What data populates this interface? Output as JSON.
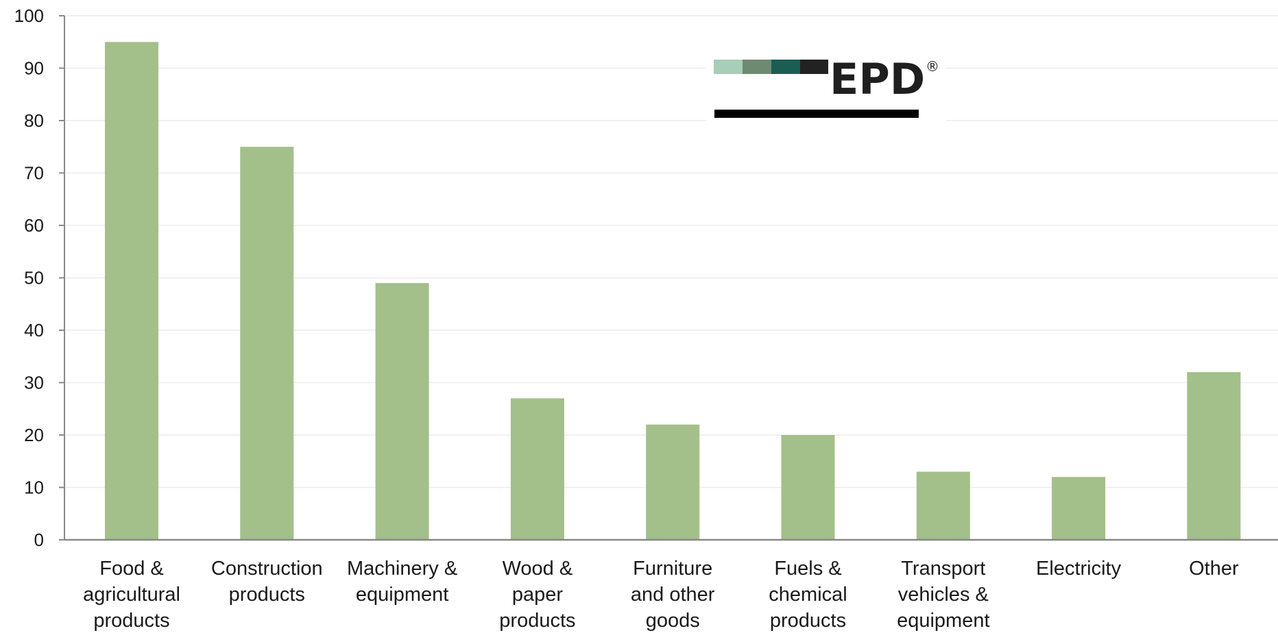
{
  "chart_data": {
    "type": "bar",
    "title": "",
    "xlabel": "",
    "ylabel": "",
    "ylim": [
      0,
      100
    ],
    "yticks": [
      0,
      10,
      20,
      30,
      40,
      50,
      60,
      70,
      80,
      90,
      100
    ],
    "grid": true,
    "categories": [
      [
        "Food &",
        "agricultural",
        "products"
      ],
      [
        "Construction",
        "products"
      ],
      [
        "Machinery &",
        "equipment"
      ],
      [
        "Wood &",
        "paper",
        "products"
      ],
      [
        "Furniture",
        "and other",
        "goods"
      ],
      [
        "Fuels &",
        "chemical",
        "products"
      ],
      [
        "Transport",
        "vehicles &",
        "equipment"
      ],
      [
        "Electricity"
      ],
      [
        "Other"
      ]
    ],
    "values": [
      95,
      75,
      49,
      27,
      22,
      20,
      13,
      12,
      32
    ],
    "bar_color": "#a3bf8a"
  },
  "logo": {
    "text": "EPD",
    "registered": "®",
    "stripe_colors": [
      "#a8cdb8",
      "#6f8a72",
      "#1a5e52",
      "#222222"
    ],
    "underline_color": "#000000"
  }
}
